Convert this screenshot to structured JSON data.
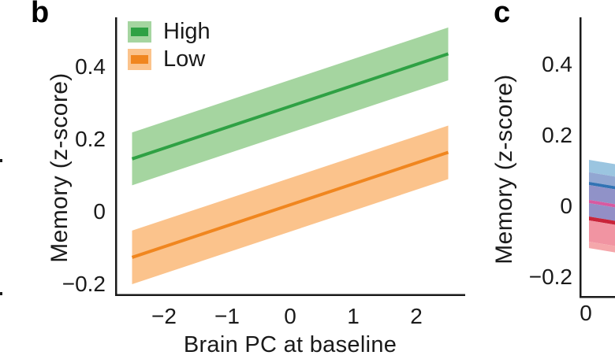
{
  "figure": {
    "panel_b": {
      "label": "b",
      "y_axis": {
        "label": "Memory (z-score)",
        "tick_labels": [
          "0.4",
          "0.2",
          "0",
          "−0.2"
        ]
      },
      "x_axis": {
        "label": "Brain PC at baseline",
        "tick_labels": [
          "−2",
          "−1",
          "0",
          "1",
          "2"
        ]
      }
    },
    "panel_c": {
      "label": "c",
      "y_axis": {
        "label": "Memory (z-score)",
        "tick_labels": [
          "0.4",
          "0.2",
          "0",
          "−0.2"
        ]
      },
      "x_axis": {
        "tick_labels": [
          "0"
        ]
      }
    }
  },
  "chart_data": [
    {
      "panel": "b",
      "type": "line",
      "title": "",
      "xlabel": "Brain PC at baseline",
      "ylabel": "Memory (z-score)",
      "xlim": [
        -2.77,
        2.77
      ],
      "ylim": [
        -0.23,
        0.54
      ],
      "x_ticks": [
        -2,
        -1,
        0,
        1,
        2
      ],
      "y_ticks": [
        0.4,
        0.2,
        0,
        -0.2
      ],
      "grid": false,
      "legend_position": "upper-left-inside",
      "series": [
        {
          "name": "High",
          "x": [
            -2.5,
            2.5
          ],
          "y": [
            0.145,
            0.435
          ],
          "ci_halfwidth": 0.073,
          "line_color": "#2fa144",
          "band_color": "#a5d5a0"
        },
        {
          "name": "Low",
          "x": [
            -2.5,
            2.5
          ],
          "y": [
            -0.127,
            0.163
          ],
          "ci_halfwidth": 0.074,
          "line_color": "#f0861f",
          "band_color": "#fbc38c"
        }
      ]
    },
    {
      "panel": "c",
      "type": "line",
      "title": "",
      "xlabel": "",
      "ylabel": "Memory (z-score)",
      "ylim": [
        -0.26,
        0.53
      ],
      "y_ticks": [
        0.4,
        0.2,
        0,
        -0.2
      ],
      "x_ticks": [
        0
      ],
      "note": "panel truncated at right image edge; overlapping confidence bands",
      "series": [
        {
          "name": "blue-line",
          "y_at_x0": 0.067,
          "line_color": "#3273b4"
        },
        {
          "name": "magenta-line",
          "y_at_x0": 0.013,
          "line_color": "#d85aa0"
        },
        {
          "name": "red-line",
          "y_at_x0": -0.033,
          "line_color": "#c9243a"
        }
      ],
      "slope_per_visible_width": -0.0122,
      "visible_strips": [
        {
          "color": "#9bc5e0",
          "y_top": 0.131,
          "y_bottom": 0.096
        },
        {
          "color": "#92a7d2",
          "y_top": 0.096,
          "y_bottom": 0.069
        },
        {
          "color": "#3273b4",
          "y_top": 0.069,
          "y_bottom": 0.06
        },
        {
          "color": "#9092c8",
          "y_top": 0.06,
          "y_bottom": 0.018
        },
        {
          "color": "#d85aa0",
          "y_top": 0.018,
          "y_bottom": 0.009
        },
        {
          "color": "#938fc6",
          "y_top": 0.009,
          "y_bottom": -0.029
        },
        {
          "color": "#c9243a",
          "y_top": -0.029,
          "y_bottom": -0.04
        },
        {
          "color": "#f194a2",
          "y_top": -0.04,
          "y_bottom": -0.1
        },
        {
          "color": "#f5a7ab",
          "y_top": -0.1,
          "y_bottom": -0.118
        }
      ]
    }
  ]
}
